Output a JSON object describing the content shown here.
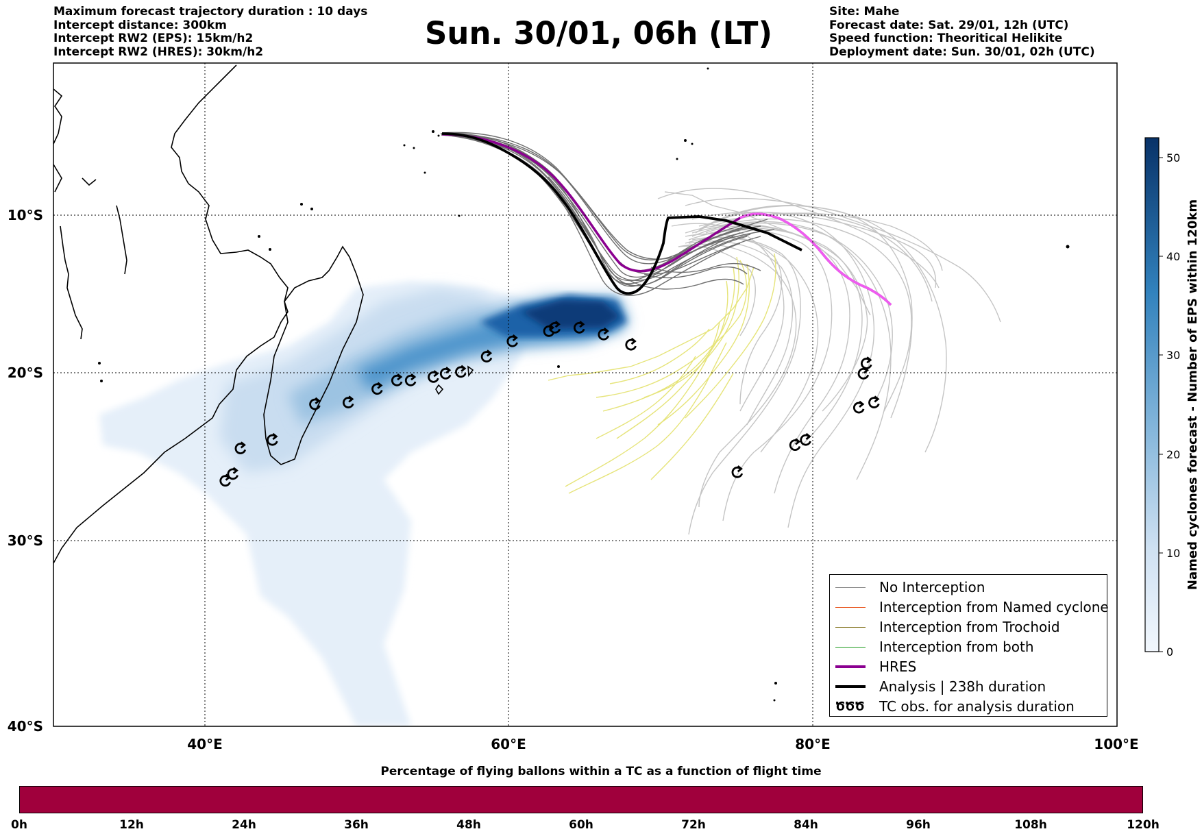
{
  "header_left": [
    "Maximum forecast trajectory duration : 10 days",
    "Intercept distance: 300km",
    "Intercept RW2 (EPS):  15km/h2",
    "Intercept RW2 (HRES): 30km/h2"
  ],
  "header_right": [
    "Site: Mahe",
    "Forecast date: Sat. 29/01, 12h (UTC)",
    "Speed function: Theoritical Helikite",
    "Deployment date: Sun. 30/01, 02h (UTC)"
  ],
  "title": "Sun. 30/01, 06h (LT)",
  "map": {
    "lon_labels": [
      "40°E",
      "60°E",
      "80°E",
      "100°E"
    ],
    "lat_labels": [
      "10°S",
      "20°S",
      "30°S",
      "40°S"
    ],
    "lon_range": [
      30,
      100
    ],
    "lat_range": [
      -40,
      -1
    ]
  },
  "colorbar": {
    "label": "Named cyclones forecast - Number of EPS within 120km",
    "ticks": [
      "0",
      "10",
      "20",
      "30",
      "40",
      "50"
    ],
    "range": [
      0,
      52
    ]
  },
  "legend": {
    "items": [
      {
        "label": "No Interception",
        "color": "#888888",
        "width": 1.5
      },
      {
        "label": "Interception from Named cyclone",
        "color": "#e8541c",
        "width": 1.5
      },
      {
        "label": "Interception from Trochoid",
        "color": "#7a6a10",
        "width": 1.5
      },
      {
        "label": "Interception from both",
        "color": "#1a9a1a",
        "width": 1.5
      },
      {
        "label": "HRES",
        "color": "#8b0090",
        "width": 4
      },
      {
        "label": "Analysis | 238h duration",
        "color": "#000000",
        "width": 4
      },
      {
        "label": "TC obs. for analysis duration",
        "color": "#000000",
        "width": 0
      }
    ],
    "tc_symbol": "ԾԾԾ"
  },
  "percentage_bar": {
    "title": "Percentage of flying ballons within a TC as a function of flight time",
    "color": "#a0003c",
    "labels": [
      "0h",
      "12h",
      "24h",
      "36h",
      "48h",
      "60h",
      "72h",
      "84h",
      "96h",
      "108h",
      "120h"
    ]
  },
  "tc_obs": [
    [
      41.3,
      -25.6
    ],
    [
      41.8,
      -25.2
    ],
    [
      42.3,
      -23.7
    ],
    [
      44.4,
      -23.2
    ],
    [
      47.2,
      -21.1
    ],
    [
      49.4,
      -21.0
    ],
    [
      51.3,
      -20.2
    ],
    [
      52.6,
      -19.7
    ],
    [
      53.5,
      -19.7
    ],
    [
      55.0,
      -19.5
    ],
    [
      55.8,
      -19.3
    ],
    [
      56.8,
      -19.2
    ],
    [
      58.5,
      -18.3
    ],
    [
      60.2,
      -17.4
    ],
    [
      62.6,
      -16.8
    ],
    [
      63.0,
      -16.6
    ],
    [
      64.6,
      -16.6
    ],
    [
      66.2,
      -17.0
    ],
    [
      68.0,
      -17.6
    ],
    [
      75.0,
      -25.1
    ],
    [
      78.8,
      -23.5
    ],
    [
      79.5,
      -23.2
    ],
    [
      83.0,
      -21.3
    ],
    [
      83.3,
      -19.3
    ],
    [
      83.5,
      -18.7
    ],
    [
      84.0,
      -21.0
    ]
  ]
}
